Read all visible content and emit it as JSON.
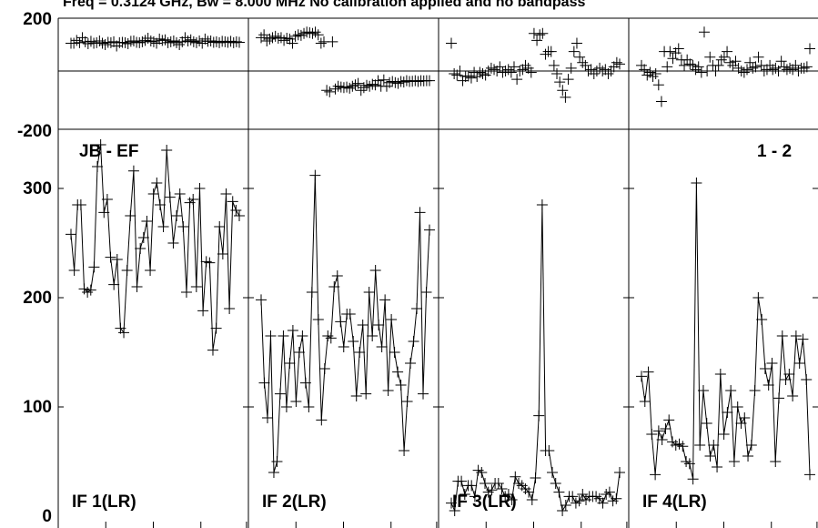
{
  "header": {
    "text": "Freq = 0.3124 GHz, Bw = 8.000 MHz   No calibration applied and no bandpass"
  },
  "plot": {
    "baseline_label": "JB - EF",
    "pair_label": "1 - 2",
    "panel_labels": [
      "IF 1(LR)",
      "IF 2(LR)",
      "IF 3(LR)",
      "IF 4(LR)"
    ],
    "phase_ticks": [
      "200",
      "-200"
    ],
    "amp_ticks": [
      "300",
      "200",
      "100",
      "0"
    ]
  },
  "chart_data": [
    {
      "type": "scatter",
      "title": "",
      "xlabel": "",
      "ylabel": "",
      "ylim": [
        -200,
        200
      ],
      "yticks": [
        200,
        -200
      ],
      "panels": [
        "IF 1(LR)",
        "IF 2(LR)",
        "IF 3(LR)",
        "IF 4(LR)"
      ],
      "series": [
        {
          "values": [
            110,
            110,
            120,
            112,
            130,
            115,
            108,
            117,
            110,
            112,
            118,
            110,
            105,
            113,
            112,
            115,
            100,
            112,
            113,
            112,
            108,
            117,
            118,
            113,
            112,
            115,
            120,
            128,
            118,
            115,
            110,
            125,
            120,
            122,
            112,
            115,
            118,
            112,
            105,
            115,
            130,
            118,
            122,
            115,
            112,
            118,
            110,
            125,
            117,
            118,
            113,
            115,
            112,
            117,
            115,
            113,
            117,
            112,
            115,
            113
          ]
        },
        {
          "values": [
            130,
            140,
            118,
            125,
            130,
            135,
            128,
            130,
            120,
            128,
            125,
            110,
            135,
            140,
            138,
            145,
            150,
            148,
            145,
            150,
            140,
            110,
            115,
            -60,
            -65,
            115,
            -55,
            -45,
            -48,
            -50,
            -48,
            -52,
            -45,
            -40,
            -35,
            -60,
            -50,
            -42,
            -45,
            -38,
            -40,
            -25,
            -45,
            -22,
            -45,
            -32,
            -28,
            -32,
            -35,
            -28,
            -30,
            -25,
            -28,
            -27,
            -25,
            -28,
            -25,
            -26,
            -25,
            -25
          ]
        },
        {
          "values": [
            110,
            0,
            -5,
            10,
            -25,
            -10,
            -8,
            -15,
            5,
            -10,
            5,
            0,
            -5,
            10,
            20,
            15,
            10,
            25,
            5,
            10,
            15,
            5,
            25,
            -20,
            10,
            15,
            30,
            20,
            5,
            145,
            120,
            140,
            145,
            70,
            80,
            80,
            30,
            0,
            -30,
            -60,
            -85,
            -20,
            20,
            80,
            110,
            60,
            40,
            30,
            10,
            15,
            0,
            10,
            20,
            10,
            15,
            0,
            10,
            25,
            40,
            35
          ]
        },
        {
          "values": [
            30,
            15,
            -5,
            5,
            -10,
            0,
            -40,
            -100,
            80,
            25,
            80,
            55,
            75,
            90,
            50,
            30,
            50,
            35,
            30,
            15,
            25,
            5,
            150,
            10,
            60,
            30,
            10,
            30,
            50,
            60,
            80,
            40,
            30,
            45,
            20,
            10,
            5,
            15,
            40,
            20,
            25,
            60,
            30,
            10,
            15,
            30,
            15,
            20,
            10,
            45,
            25,
            15,
            20,
            15,
            30,
            10,
            20,
            20,
            25,
            90
          ]
        }
      ]
    },
    {
      "type": "line",
      "title": "",
      "xlabel": "",
      "ylabel": "",
      "ylim": [
        0,
        335
      ],
      "yticks": [
        300,
        200,
        100,
        0
      ],
      "panels": [
        "IF 1(LR)",
        "IF 2(LR)",
        "IF 3(LR)",
        "IF 4(LR)"
      ],
      "series": [
        {
          "values": [
            258,
            225,
            285,
            285,
            208,
            205,
            207,
            228,
            320,
            340,
            278,
            290,
            237,
            212,
            235,
            172,
            168,
            225,
            275,
            316,
            210,
            245,
            255,
            270,
            225,
            295,
            305,
            285,
            265,
            335,
            292,
            250,
            275,
            295,
            265,
            205,
            287,
            290,
            210,
            300,
            188,
            233,
            232,
            152,
            172,
            265,
            240,
            295,
            190,
            288,
            280,
            275
          ]
        },
        {
          "values": [
            198,
            122,
            90,
            165,
            40,
            50,
            112,
            165,
            100,
            140,
            170,
            105,
            150,
            165,
            122,
            100,
            205,
            312,
            180,
            88,
            135,
            165,
            163,
            210,
            220,
            178,
            155,
            185,
            185,
            160,
            110,
            150,
            175,
            112,
            205,
            165,
            225,
            175,
            155,
            198,
            115,
            180,
            150,
            132,
            120,
            60,
            105,
            140,
            160,
            190,
            278,
            112,
            205,
            262
          ]
        },
        {
          "values": [
            12,
            5,
            32,
            32,
            20,
            28,
            28,
            18,
            42,
            40,
            30,
            22,
            24,
            30,
            30,
            25,
            18,
            20,
            15,
            36,
            30,
            28,
            25,
            22,
            15,
            35,
            92,
            285,
            60,
            60,
            40,
            30,
            22,
            5,
            10,
            18,
            18,
            12,
            14,
            20,
            15,
            18,
            18,
            18,
            16,
            12,
            20,
            22,
            14,
            16,
            40
          ]
        },
        {
          "values": [
            128,
            105,
            132,
            75,
            38,
            78,
            70,
            80,
            88,
            68,
            65,
            66,
            64,
            50,
            48,
            34,
            305,
            65,
            115,
            85,
            55,
            65,
            45,
            130,
            75,
            95,
            115,
            50,
            100,
            85,
            90,
            55,
            65,
            115,
            200,
            180,
            135,
            120,
            140,
            50,
            108,
            165,
            125,
            130,
            110,
            165,
            140,
            162,
            125,
            38
          ]
        }
      ]
    }
  ]
}
